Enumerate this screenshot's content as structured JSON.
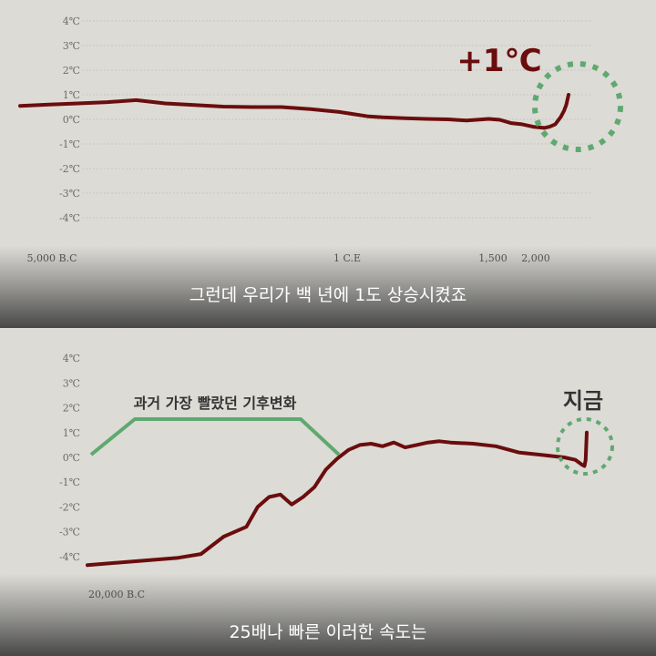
{
  "chart_data": [
    {
      "type": "line",
      "title": "",
      "xlabel": "",
      "ylabel": "",
      "y_ticks": [
        "4℃",
        "3℃",
        "2℃",
        "1℃",
        "0℃",
        "-1℃",
        "-2℃",
        "-3℃",
        "-4℃"
      ],
      "ylim": [
        -4,
        4
      ],
      "x_ticks": [
        "5,000 B.C",
        "1 C.E",
        "1,500",
        "2,000"
      ],
      "grid": true,
      "annotation": "+1℃",
      "subtitle": "그런데 우리가 백 년에 1도 상승시켰죠",
      "series": [
        {
          "color": "#6b0d0d",
          "x": [
            -5000,
            -4600,
            -4200,
            -3800,
            -3400,
            -3000,
            -2600,
            -2200,
            -1800,
            -1400,
            -1000,
            -600,
            -200,
            0,
            300,
            600,
            900,
            1100,
            1300,
            1400,
            1500,
            1600,
            1700,
            1800,
            1850,
            1900,
            1950,
            1980,
            2000,
            2010,
            2020
          ],
          "values": [
            0.55,
            0.6,
            0.65,
            0.7,
            0.78,
            0.65,
            0.58,
            0.52,
            0.5,
            0.5,
            0.42,
            0.3,
            0.12,
            0.08,
            0.05,
            0.02,
            0.0,
            -0.05,
            0.02,
            -0.02,
            -0.15,
            -0.2,
            -0.3,
            -0.35,
            -0.3,
            -0.2,
            0.1,
            0.35,
            0.6,
            0.8,
            1.0
          ]
        }
      ]
    },
    {
      "type": "line",
      "title": "",
      "xlabel": "",
      "ylabel": "",
      "y_ticks": [
        "4℃",
        "3℃",
        "2℃",
        "1℃",
        "0℃",
        "-1℃",
        "-2℃",
        "-3℃",
        "-4℃"
      ],
      "ylim": [
        -4,
        4
      ],
      "x_ticks": [
        "20,000 B.C"
      ],
      "grid": false,
      "annotation_range": "과거 가장 빨랐던 기후변화",
      "annotation": "지금",
      "subtitle": "25배나 빠른 이러한 속도는",
      "series": [
        {
          "color": "#6b0d0d",
          "x": [
            -20000,
            -18000,
            -16000,
            -15000,
            -14000,
            -13000,
            -12500,
            -12000,
            -11500,
            -11000,
            -10500,
            -10000,
            -9500,
            -9000,
            -8500,
            -8000,
            -7500,
            -7000,
            -6500,
            -6000,
            -5500,
            -5000,
            -4500,
            -4000,
            -3000,
            -2000,
            -1000,
            0,
            500,
            1000,
            1500,
            1800,
            1900,
            1950,
            2000
          ],
          "values": [
            -4.35,
            -4.2,
            -4.05,
            -3.9,
            -3.2,
            -2.8,
            -2.0,
            -1.6,
            -1.5,
            -1.9,
            -1.6,
            -1.2,
            -0.5,
            -0.05,
            0.3,
            0.5,
            0.55,
            0.45,
            0.6,
            0.4,
            0.5,
            0.6,
            0.65,
            0.6,
            0.55,
            0.45,
            0.2,
            0.1,
            0.05,
            0.0,
            -0.1,
            -0.3,
            -0.35,
            -0.1,
            1.0
          ]
        }
      ]
    }
  ]
}
